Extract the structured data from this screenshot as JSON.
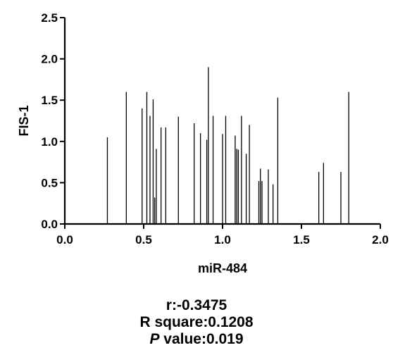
{
  "chart_data": {
    "type": "bar",
    "xlabel": "miR-484",
    "ylabel": "FIS-1",
    "xlim": [
      0,
      2.0
    ],
    "ylim": [
      0,
      2.5
    ],
    "x_ticks": [
      "0.0",
      "0.5",
      "1.0",
      "1.5",
      "2.0"
    ],
    "y_ticks": [
      "0.0",
      "0.5",
      "1.0",
      "1.5",
      "2.0",
      "2.5"
    ],
    "grid": false,
    "points": [
      {
        "x": 0.27,
        "y": 1.05
      },
      {
        "x": 0.39,
        "y": 1.6
      },
      {
        "x": 0.49,
        "y": 1.4
      },
      {
        "x": 0.52,
        "y": 1.6
      },
      {
        "x": 0.54,
        "y": 1.31
      },
      {
        "x": 0.56,
        "y": 1.51
      },
      {
        "x": 0.57,
        "y": 0.32
      },
      {
        "x": 0.58,
        "y": 0.91
      },
      {
        "x": 0.61,
        "y": 1.17
      },
      {
        "x": 0.64,
        "y": 1.17
      },
      {
        "x": 0.72,
        "y": 1.3
      },
      {
        "x": 0.82,
        "y": 1.22
      },
      {
        "x": 0.86,
        "y": 1.1
      },
      {
        "x": 0.9,
        "y": 1.02
      },
      {
        "x": 0.91,
        "y": 1.9
      },
      {
        "x": 0.94,
        "y": 1.31
      },
      {
        "x": 1.0,
        "y": 1.09
      },
      {
        "x": 1.02,
        "y": 1.31
      },
      {
        "x": 1.08,
        "y": 1.07
      },
      {
        "x": 1.09,
        "y": 0.91
      },
      {
        "x": 1.1,
        "y": 0.9
      },
      {
        "x": 1.12,
        "y": 1.31
      },
      {
        "x": 1.15,
        "y": 0.85
      },
      {
        "x": 1.17,
        "y": 1.2
      },
      {
        "x": 1.23,
        "y": 0.52
      },
      {
        "x": 1.24,
        "y": 0.67
      },
      {
        "x": 1.25,
        "y": 0.52
      },
      {
        "x": 1.29,
        "y": 0.66
      },
      {
        "x": 1.32,
        "y": 0.48
      },
      {
        "x": 1.35,
        "y": 1.53
      },
      {
        "x": 1.61,
        "y": 0.63
      },
      {
        "x": 1.64,
        "y": 0.74
      },
      {
        "x": 1.75,
        "y": 0.63
      },
      {
        "x": 1.8,
        "y": 1.6
      }
    ]
  },
  "stats": {
    "r_line": "r:-0.3475",
    "r_square_line": "R square:0.1208",
    "p_label": "P",
    "p_value_line": " value:0.019"
  }
}
